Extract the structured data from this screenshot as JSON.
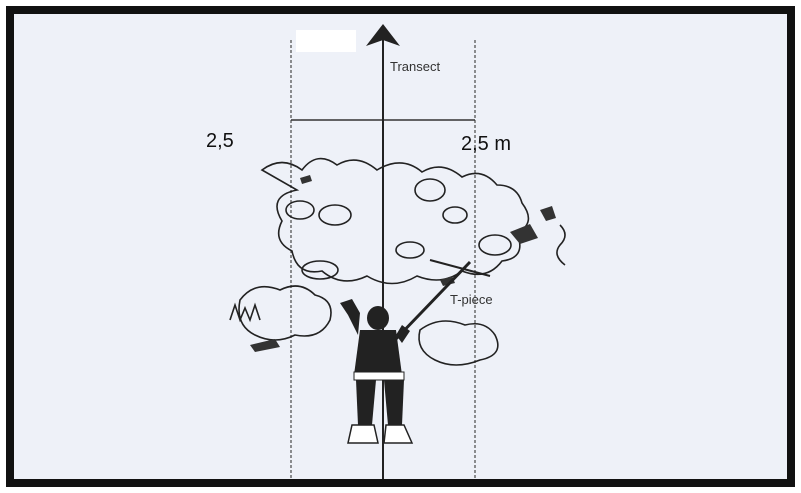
{
  "diagram": {
    "labels": {
      "transect": "Transect",
      "left_width": "2,5",
      "right_width": "2,5 m",
      "t_piece": "T-piece"
    }
  }
}
